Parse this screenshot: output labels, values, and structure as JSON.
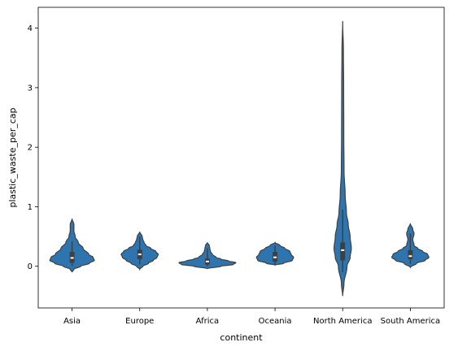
{
  "chart_data": {
    "type": "violin",
    "xlabel": "continent",
    "ylabel": "plastic_waste_per_cap",
    "ylim": [
      -0.7,
      4.35
    ],
    "yticks": [
      0,
      1,
      2,
      3,
      4
    ],
    "grid": false,
    "legend": "none",
    "color": "#2e75b0",
    "categories": [
      "Asia",
      "Europe",
      "Africa",
      "Oceania",
      "North America",
      "South America"
    ],
    "violins": [
      {
        "category": "Asia",
        "min": -0.1,
        "max": 0.8,
        "q1": 0.06,
        "median": 0.14,
        "q3": 0.24,
        "whisker_low": 0.0,
        "whisker_high": 0.42,
        "profile": [
          [
            -0.1,
            0.0
          ],
          [
            -0.05,
            0.03
          ],
          [
            0.0,
            0.14
          ],
          [
            0.05,
            0.28
          ],
          [
            0.1,
            0.36
          ],
          [
            0.15,
            0.34
          ],
          [
            0.2,
            0.27
          ],
          [
            0.3,
            0.18
          ],
          [
            0.4,
            0.1
          ],
          [
            0.5,
            0.05
          ],
          [
            0.6,
            0.03
          ],
          [
            0.7,
            0.03
          ],
          [
            0.8,
            0.0
          ]
        ]
      },
      {
        "category": "Europe",
        "min": -0.05,
        "max": 0.58,
        "q1": 0.12,
        "median": 0.2,
        "q3": 0.28,
        "whisker_low": 0.03,
        "whisker_high": 0.5,
        "profile": [
          [
            -0.05,
            0.0
          ],
          [
            0.0,
            0.05
          ],
          [
            0.05,
            0.14
          ],
          [
            0.1,
            0.22
          ],
          [
            0.15,
            0.28
          ],
          [
            0.2,
            0.3
          ],
          [
            0.25,
            0.26
          ],
          [
            0.3,
            0.18
          ],
          [
            0.35,
            0.1
          ],
          [
            0.4,
            0.07
          ],
          [
            0.45,
            0.05
          ],
          [
            0.5,
            0.04
          ],
          [
            0.58,
            0.0
          ]
        ]
      },
      {
        "category": "Africa",
        "min": -0.04,
        "max": 0.4,
        "q1": 0.03,
        "median": 0.08,
        "q3": 0.13,
        "whisker_low": 0.0,
        "whisker_high": 0.3,
        "profile": [
          [
            -0.04,
            0.0
          ],
          [
            0.0,
            0.22
          ],
          [
            0.03,
            0.42
          ],
          [
            0.06,
            0.46
          ],
          [
            0.09,
            0.34
          ],
          [
            0.12,
            0.22
          ],
          [
            0.15,
            0.14
          ],
          [
            0.2,
            0.08
          ],
          [
            0.25,
            0.05
          ],
          [
            0.3,
            0.04
          ],
          [
            0.35,
            0.03
          ],
          [
            0.4,
            0.0
          ]
        ]
      },
      {
        "category": "Oceania",
        "min": 0.02,
        "max": 0.4,
        "q1": 0.08,
        "median": 0.15,
        "q3": 0.24,
        "whisker_low": 0.03,
        "whisker_high": 0.35,
        "profile": [
          [
            0.02,
            0.0
          ],
          [
            0.05,
            0.14
          ],
          [
            0.1,
            0.28
          ],
          [
            0.15,
            0.3
          ],
          [
            0.2,
            0.26
          ],
          [
            0.25,
            0.24
          ],
          [
            0.3,
            0.16
          ],
          [
            0.35,
            0.08
          ],
          [
            0.4,
            0.0
          ]
        ]
      },
      {
        "category": "North America",
        "min": -0.5,
        "max": 4.12,
        "q1": 0.1,
        "median": 0.27,
        "q3": 0.4,
        "whisker_low": -0.1,
        "whisker_high": 0.95,
        "profile": [
          [
            -0.5,
            0.0
          ],
          [
            -0.3,
            0.02
          ],
          [
            0.0,
            0.07
          ],
          [
            0.15,
            0.12
          ],
          [
            0.3,
            0.14
          ],
          [
            0.5,
            0.12
          ],
          [
            0.7,
            0.09
          ],
          [
            0.9,
            0.06
          ],
          [
            1.2,
            0.04
          ],
          [
            1.6,
            0.022
          ],
          [
            2.2,
            0.018
          ],
          [
            3.0,
            0.016
          ],
          [
            3.6,
            0.012
          ],
          [
            4.12,
            0.0
          ]
        ]
      },
      {
        "category": "South America",
        "min": -0.02,
        "max": 0.72,
        "q1": 0.12,
        "median": 0.17,
        "q3": 0.27,
        "whisker_low": 0.04,
        "whisker_high": 0.55,
        "profile": [
          [
            -0.02,
            0.0
          ],
          [
            0.05,
            0.1
          ],
          [
            0.1,
            0.24
          ],
          [
            0.15,
            0.3
          ],
          [
            0.2,
            0.28
          ],
          [
            0.25,
            0.2
          ],
          [
            0.3,
            0.12
          ],
          [
            0.35,
            0.06
          ],
          [
            0.45,
            0.04
          ],
          [
            0.55,
            0.06
          ],
          [
            0.62,
            0.04
          ],
          [
            0.72,
            0.0
          ]
        ]
      }
    ]
  }
}
